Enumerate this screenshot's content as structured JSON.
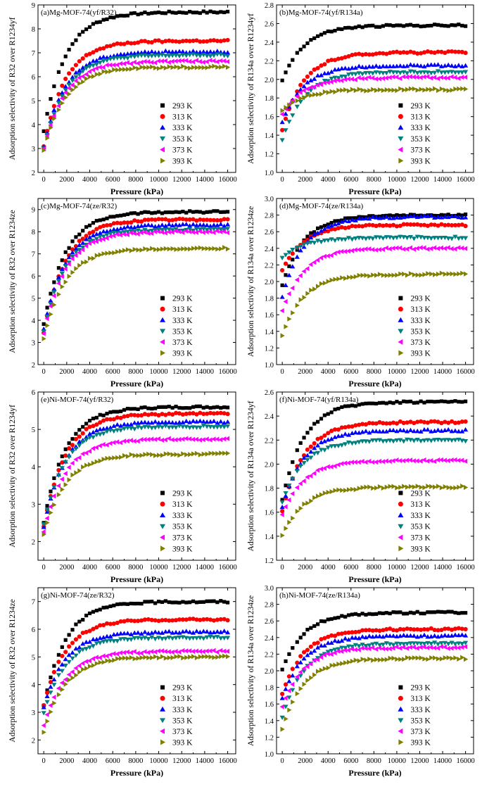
{
  "figure": {
    "xlabel": "Pressure (kPa)",
    "x_ticks": [
      "0",
      "2000",
      "4000",
      "6000",
      "8000",
      "10000",
      "12000",
      "14000",
      "16000"
    ],
    "legend_labels": [
      "293 K",
      "313 K",
      "333 K",
      "353 K",
      "373 K",
      "393 K"
    ],
    "series_colors": [
      "#000000",
      "#ff0000",
      "#0000ff",
      "#007f7f",
      "#ff00ff",
      "#7f7f00"
    ],
    "marker_types": [
      "square",
      "circle",
      "triangle-up",
      "triangle-down",
      "triangle-left",
      "triangle-right"
    ]
  },
  "chart_data": [
    {
      "type": "scatter",
      "panel": "a",
      "title": "(a)Mg-MOF-74(yf/R32)",
      "xlabel": "Pressure (kPa)",
      "ylabel": "Adsorption selectivity of R32 over R1234yf",
      "xlim": [
        -500,
        16700
      ],
      "ylim": [
        2,
        9
      ],
      "y_ticks": [
        "2",
        "3",
        "4",
        "5",
        "6",
        "7",
        "8",
        "9"
      ],
      "series": [
        {
          "name": "293 K",
          "start": 3.4,
          "plateau": 8.7
        },
        {
          "name": "313 K",
          "start": 2.8,
          "plateau": 7.5
        },
        {
          "name": "333 K",
          "start": 2.8,
          "plateau": 7.05
        },
        {
          "name": "353 K",
          "start": 2.75,
          "plateau": 6.9
        },
        {
          "name": "373 K",
          "start": 2.75,
          "plateau": 6.65
        },
        {
          "name": "393 K",
          "start": 2.7,
          "plateau": 6.4
        }
      ]
    },
    {
      "type": "scatter",
      "panel": "b",
      "title": "(b)Mg-MOF-74(yf/R134a)",
      "xlabel": "Pressure (kPa)",
      "ylabel": "Adsorption selectivity of R134a over R1234yf",
      "xlim": [
        -500,
        16700
      ],
      "ylim": [
        1.0,
        2.8
      ],
      "y_ticks": [
        "1.0",
        "1.2",
        "1.4",
        "1.6",
        "1.8",
        "2.0",
        "2.2",
        "2.4",
        "2.6",
        "2.8"
      ],
      "series": [
        {
          "name": "293 K",
          "start": 1.95,
          "plateau": 2.58
        },
        {
          "name": "313 K",
          "start": 1.4,
          "plateau": 2.29
        },
        {
          "name": "333 K",
          "start": 1.5,
          "plateau": 2.15
        },
        {
          "name": "353 K",
          "start": 1.3,
          "plateau": 2.08
        },
        {
          "name": "373 K",
          "start": 1.6,
          "plateau": 2.02
        },
        {
          "name": "393 K",
          "start": 1.65,
          "plateau": 1.89
        }
      ]
    },
    {
      "type": "scatter",
      "panel": "c",
      "title": "(c)Mg-MOF-74(ze/R32)",
      "xlabel": "Pressure (kPa)",
      "ylabel": "Adsorption selectivity of R32 over R1234ze",
      "xlim": [
        -500,
        16700
      ],
      "ylim": [
        2,
        9.5
      ],
      "y_ticks": [
        "2",
        "3",
        "4",
        "5",
        "6",
        "7",
        "8",
        "9"
      ],
      "series": [
        {
          "name": "293 K",
          "start": 3.5,
          "plateau": 8.9
        },
        {
          "name": "313 K",
          "start": 3.1,
          "plateau": 8.55
        },
        {
          "name": "333 K",
          "start": 3.3,
          "plateau": 8.3
        },
        {
          "name": "353 K",
          "start": 3.2,
          "plateau": 8.1
        },
        {
          "name": "373 K",
          "start": 3.1,
          "plateau": 8.0
        },
        {
          "name": "393 K",
          "start": 2.9,
          "plateau": 7.25
        }
      ]
    },
    {
      "type": "scatter",
      "panel": "d",
      "title": "(d)Mg-MOF-74(ze/R134a)",
      "xlabel": "Pressure (kPa)",
      "ylabel": "Adsorption selectivity of R134a over R1234ze",
      "xlim": [
        -500,
        16700
      ],
      "ylim": [
        1.0,
        3.0
      ],
      "y_ticks": [
        "1.0",
        "1.2",
        "1.4",
        "1.6",
        "1.8",
        "2.0",
        "2.2",
        "2.4",
        "2.6",
        "2.8",
        "3.0"
      ],
      "series": [
        {
          "name": "293 K",
          "start": 1.9,
          "plateau": 2.8
        },
        {
          "name": "313 K",
          "start": 2.1,
          "plateau": 2.68
        },
        {
          "name": "333 K",
          "start": 1.75,
          "plateau": 2.78
        },
        {
          "name": "353 K",
          "start": 2.27,
          "plateau": 2.53
        },
        {
          "name": "373 K",
          "start": 1.6,
          "plateau": 2.4
        },
        {
          "name": "393 K",
          "start": 1.3,
          "plateau": 2.09
        }
      ]
    },
    {
      "type": "scatter",
      "panel": "e",
      "title": "(e)Ni-MOF-74(yf/R32)",
      "xlabel": "Pressure (kPa)",
      "ylabel": "Adsorption selectivity of R32 over R1234yf",
      "xlim": [
        -500,
        16700
      ],
      "ylim": [
        1.5,
        6
      ],
      "y_ticks": [
        "2",
        "3",
        "4",
        "5",
        "6"
      ],
      "series": [
        {
          "name": "293 K",
          "start": 2.3,
          "plateau": 5.6
        },
        {
          "name": "313 K",
          "start": 2.2,
          "plateau": 5.42
        },
        {
          "name": "333 K",
          "start": 2.2,
          "plateau": 5.2
        },
        {
          "name": "353 K",
          "start": 2.3,
          "plateau": 5.08
        },
        {
          "name": "373 K",
          "start": 2.1,
          "plateau": 4.74
        },
        {
          "name": "393 K",
          "start": 2.05,
          "plateau": 4.34
        }
      ]
    },
    {
      "type": "scatter",
      "panel": "f",
      "title": "(f)Ni-MOF-74(yf/R134a)",
      "xlabel": "Pressure (kPa)",
      "ylabel": "Adsorption selectivity of R134a over R1234yf",
      "xlim": [
        -500,
        16700
      ],
      "ylim": [
        1.2,
        2.6
      ],
      "y_ticks": [
        "1.2",
        "1.4",
        "1.6",
        "1.8",
        "2.0",
        "2.2",
        "2.4",
        "2.6"
      ],
      "series": [
        {
          "name": "293 K",
          "start": 1.65,
          "plateau": 2.52
        },
        {
          "name": "313 K",
          "start": 1.56,
          "plateau": 2.35
        },
        {
          "name": "333 K",
          "start": 1.6,
          "plateau": 2.28
        },
        {
          "name": "353 K",
          "start": 1.65,
          "plateau": 2.2
        },
        {
          "name": "373 K",
          "start": 1.55,
          "plateau": 2.03
        },
        {
          "name": "393 K",
          "start": 1.38,
          "plateau": 1.81
        }
      ]
    },
    {
      "type": "scatter",
      "panel": "g",
      "title": "(g)Ni-MOF-74(ze/R32)",
      "xlabel": "Pressure (kPa)",
      "ylabel": "Adsorption selectivity of R32 over R1234ze",
      "xlim": [
        -500,
        16700
      ],
      "ylim": [
        1.5,
        7.5
      ],
      "y_ticks": [
        "2",
        "3",
        "4",
        "5",
        "6",
        "7"
      ],
      "series": [
        {
          "name": "293 K",
          "start": 3.0,
          "plateau": 7.0
        },
        {
          "name": "313 K",
          "start": 3.05,
          "plateau": 6.35
        },
        {
          "name": "333 K",
          "start": 3.0,
          "plateau": 5.9
        },
        {
          "name": "353 K",
          "start": 2.8,
          "plateau": 5.7
        },
        {
          "name": "373 K",
          "start": 2.35,
          "plateau": 5.2
        },
        {
          "name": "393 K",
          "start": 2.1,
          "plateau": 5.0
        }
      ]
    },
    {
      "type": "scatter",
      "panel": "h",
      "title": "(h)Ni-MOF-74(ze/R134a)",
      "xlabel": "Pressure (kPa)",
      "ylabel": "Adsorption selectivity of R134a over R1234ze",
      "xlim": [
        -500,
        16700
      ],
      "ylim": [
        1.0,
        3.0
      ],
      "y_ticks": [
        "1.0",
        "1.2",
        "1.4",
        "1.6",
        "1.8",
        "2.0",
        "2.2",
        "2.4",
        "2.6",
        "2.8",
        "3.0"
      ],
      "series": [
        {
          "name": "293 K",
          "start": 1.97,
          "plateau": 2.7
        },
        {
          "name": "313 K",
          "start": 1.67,
          "plateau": 2.5
        },
        {
          "name": "333 K",
          "start": 1.62,
          "plateau": 2.42
        },
        {
          "name": "353 K",
          "start": 1.38,
          "plateau": 2.33
        },
        {
          "name": "373 K",
          "start": 1.52,
          "plateau": 2.28
        },
        {
          "name": "393 K",
          "start": 1.24,
          "plateau": 2.15
        }
      ]
    }
  ]
}
